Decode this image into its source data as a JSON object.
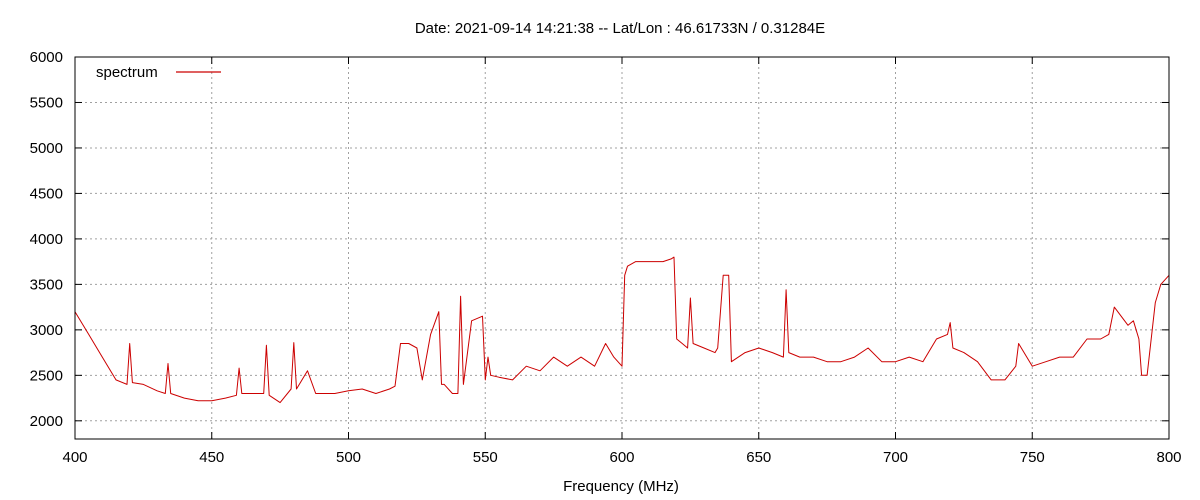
{
  "chart_data": {
    "type": "line",
    "title": "Date: 2021-09-14 14:21:38  --  Lat/Lon : 46.61733N / 0.31284E",
    "xlabel": "Frequency (MHz)",
    "ylabel": "",
    "xlim": [
      400,
      800
    ],
    "ylim": [
      1800,
      6000
    ],
    "x_ticks": [
      400,
      450,
      500,
      550,
      600,
      650,
      700,
      750,
      800
    ],
    "y_ticks": [
      2000,
      2500,
      3000,
      3500,
      4000,
      4500,
      5000,
      5500,
      6000
    ],
    "grid": true,
    "legend_position": "top-left",
    "colors": {
      "series": "#cc0000",
      "grid": "#a0a0a0",
      "axis": "#000000"
    },
    "series": [
      {
        "name": "spectrum",
        "x": [
          400,
          405,
          410,
          415,
          419,
          420,
          421,
          425,
          430,
          433,
          434,
          435,
          440,
          445,
          450,
          455,
          459,
          460,
          461,
          465,
          469,
          470,
          471,
          475,
          479,
          480,
          481,
          485,
          488,
          490,
          495,
          500,
          505,
          510,
          515,
          517,
          519,
          522,
          525,
          527,
          530,
          533,
          534,
          535,
          538,
          540,
          541,
          542,
          545,
          549,
          550,
          551,
          552,
          555,
          560,
          565,
          570,
          575,
          580,
          585,
          590,
          594,
          597,
          600,
          601,
          602,
          605,
          610,
          615,
          618,
          619,
          620,
          622,
          624,
          625,
          626,
          630,
          634,
          635,
          637,
          639,
          640,
          645,
          650,
          655,
          659,
          660,
          661,
          665,
          670,
          675,
          680,
          685,
          690,
          695,
          700,
          705,
          710,
          715,
          719,
          720,
          721,
          725,
          730,
          735,
          740,
          744,
          745,
          750,
          755,
          760,
          765,
          770,
          775,
          778,
          780,
          785,
          787,
          789,
          790,
          792,
          795,
          797,
          800
        ],
        "values": [
          3200,
          2950,
          2700,
          2450,
          2400,
          2850,
          2420,
          2400,
          2330,
          2300,
          2630,
          2300,
          2250,
          2220,
          2220,
          2250,
          2280,
          2580,
          2300,
          2300,
          2300,
          2830,
          2280,
          2200,
          2350,
          2860,
          2350,
          2550,
          2300,
          2300,
          2300,
          2330,
          2350,
          2300,
          2350,
          2380,
          2850,
          2850,
          2800,
          2450,
          2950,
          3200,
          2400,
          2400,
          2300,
          2300,
          3370,
          2400,
          3100,
          3150,
          2450,
          2700,
          2500,
          2480,
          2450,
          2600,
          2550,
          2700,
          2600,
          2700,
          2600,
          2850,
          2700,
          2600,
          3600,
          3700,
          3750,
          3750,
          3750,
          3780,
          3800,
          2900,
          2850,
          2800,
          3350,
          2850,
          2800,
          2750,
          2800,
          3600,
          3600,
          2650,
          2750,
          2800,
          2750,
          2700,
          3440,
          2750,
          2700,
          2700,
          2650,
          2650,
          2700,
          2800,
          2650,
          2650,
          2700,
          2650,
          2900,
          2950,
          3080,
          2800,
          2750,
          2650,
          2450,
          2450,
          2600,
          2850,
          2600,
          2650,
          2700,
          2700,
          2900,
          2900,
          2950,
          3250,
          3050,
          3100,
          2900,
          2500,
          2500,
          3300,
          3500,
          3600
        ]
      }
    ]
  }
}
